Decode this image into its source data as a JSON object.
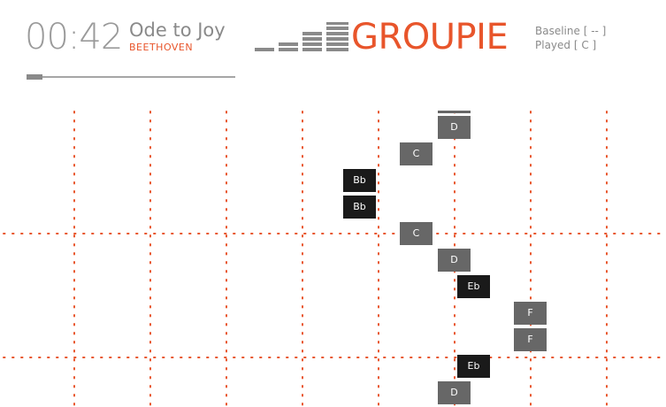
{
  "player": {
    "time": "00:42",
    "song_title": "Ode to Joy",
    "artist": "BEETHOVEN",
    "progress": 0.08
  },
  "brand": {
    "name": "GROUPIE"
  },
  "status": {
    "baseline": "Baseline [ -- ]",
    "played": "Played [ C ]"
  },
  "colors": {
    "accent": "#e8552b",
    "note_natural": "#676767",
    "note_flat": "#1a1a1a",
    "grid": "#e8552b"
  },
  "notes": [
    {
      "label": "D",
      "kind": "natural"
    },
    {
      "label": "C",
      "kind": "natural"
    },
    {
      "label": "Bb",
      "kind": "flat"
    },
    {
      "label": "Bb",
      "kind": "flat"
    },
    {
      "label": "C",
      "kind": "natural"
    },
    {
      "label": "D",
      "kind": "natural"
    },
    {
      "label": "Eb",
      "kind": "flat"
    },
    {
      "label": "F",
      "kind": "natural"
    },
    {
      "label": "F",
      "kind": "natural"
    },
    {
      "label": "Eb",
      "kind": "flat"
    },
    {
      "label": "D",
      "kind": "natural"
    }
  ]
}
